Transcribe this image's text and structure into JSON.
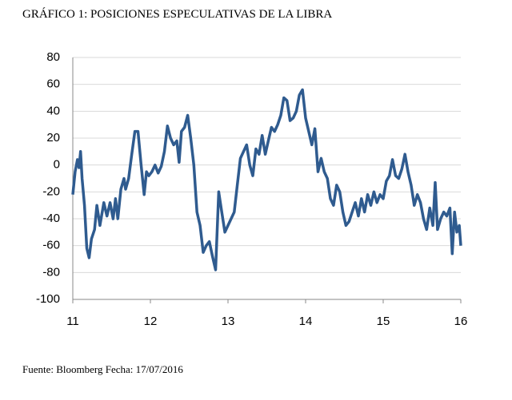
{
  "chart_data": {
    "type": "line",
    "title": "GRÁFICO 1: POSICIONES ESPECULATIVAS DE LA LIBRA",
    "source": "Fuente: Bloomberg Fecha: 17/07/2016",
    "x": [
      11.0,
      11.03,
      11.06,
      11.08,
      11.1,
      11.12,
      11.15,
      11.18,
      11.21,
      11.24,
      11.28,
      11.31,
      11.35,
      11.4,
      11.44,
      11.48,
      11.52,
      11.55,
      11.58,
      11.62,
      11.66,
      11.68,
      11.72,
      11.76,
      11.8,
      11.84,
      11.88,
      11.92,
      11.95,
      11.98,
      12.02,
      12.06,
      12.1,
      12.14,
      12.18,
      12.22,
      12.26,
      12.3,
      12.34,
      12.37,
      12.4,
      12.44,
      12.48,
      12.52,
      12.56,
      12.6,
      12.64,
      12.68,
      12.72,
      12.76,
      12.8,
      12.84,
      12.88,
      12.92,
      12.96,
      13.0,
      13.04,
      13.08,
      13.12,
      13.16,
      13.2,
      13.24,
      13.28,
      13.32,
      13.36,
      13.4,
      13.44,
      13.48,
      13.52,
      13.56,
      13.6,
      13.64,
      13.68,
      13.72,
      13.76,
      13.8,
      13.84,
      13.88,
      13.92,
      13.96,
      14.0,
      14.04,
      14.08,
      14.12,
      14.16,
      14.2,
      14.24,
      14.28,
      14.32,
      14.36,
      14.4,
      14.44,
      14.48,
      14.52,
      14.56,
      14.6,
      14.64,
      14.68,
      14.72,
      14.76,
      14.8,
      14.84,
      14.88,
      14.92,
      14.96,
      15.0,
      15.04,
      15.08,
      15.12,
      15.16,
      15.2,
      15.24,
      15.28,
      15.32,
      15.36,
      15.4,
      15.44,
      15.48,
      15.52,
      15.56,
      15.6,
      15.64,
      15.67,
      15.7,
      15.74,
      15.78,
      15.82,
      15.86,
      15.89,
      15.92,
      15.95,
      15.98,
      16.0
    ],
    "series": [
      {
        "name": "Posiciones",
        "color": "#2f5b8f",
        "values": [
          -22,
          -5,
          4,
          -2,
          10,
          -10,
          -30,
          -62,
          -69,
          -55,
          -48,
          -30,
          -45,
          -28,
          -38,
          -28,
          -40,
          -25,
          -40,
          -18,
          -10,
          -18,
          -10,
          8,
          25,
          25,
          0,
          -22,
          -5,
          -8,
          -5,
          0,
          -6,
          -1,
          10,
          29,
          20,
          15,
          18,
          2,
          25,
          28,
          37,
          20,
          0,
          -35,
          -45,
          -65,
          -60,
          -57,
          -68,
          -78,
          -20,
          -35,
          -50,
          -45,
          -40,
          -35,
          -15,
          5,
          10,
          15,
          0,
          -8,
          12,
          8,
          22,
          8,
          18,
          28,
          25,
          30,
          37,
          50,
          48,
          33,
          35,
          40,
          52,
          56,
          35,
          25,
          15,
          27,
          -5,
          5,
          -5,
          -10,
          -25,
          -30,
          -15,
          -20,
          -35,
          -45,
          -42,
          -35,
          -28,
          -38,
          -25,
          -35,
          -22,
          -30,
          -20,
          -28,
          -22,
          -25,
          -12,
          -8,
          4,
          -8,
          -10,
          -3,
          8,
          -5,
          -15,
          -30,
          -22,
          -28,
          -40,
          -48,
          -32,
          -45,
          -13,
          -48,
          -40,
          -35,
          -38,
          -32,
          -66,
          -35,
          -50,
          -45,
          -60
        ]
      }
    ],
    "xlim": [
      11,
      16
    ],
    "xticks": [
      11,
      12,
      13,
      14,
      15,
      16
    ],
    "ylim": [
      -100,
      80
    ],
    "yticks": [
      -100,
      -80,
      -60,
      -40,
      -20,
      0,
      20,
      40,
      60,
      80
    ],
    "grid": true
  }
}
